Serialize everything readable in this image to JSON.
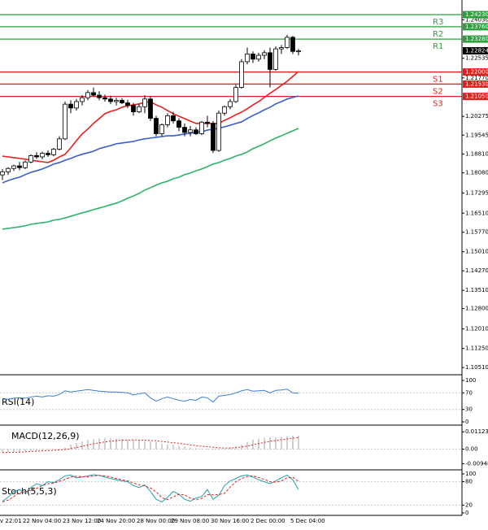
{
  "chart_data": [
    {
      "type": "candlestick",
      "categories": [
        "v 22:01",
        null,
        null,
        null,
        "22 Nov 04:00",
        null,
        null,
        null,
        null,
        null,
        null,
        "23 Nov 12:00",
        null,
        null,
        null,
        null,
        null,
        "24 Nov 20:00",
        null,
        null,
        null,
        null,
        null,
        null,
        "28 Nov 00:00",
        null,
        null,
        null,
        null,
        null,
        "29 Nov 08:00",
        null,
        null,
        null,
        null,
        null,
        null,
        "30 Nov 16:00",
        null,
        null,
        null,
        null,
        null,
        null,
        "2 Dec 00:00",
        null,
        null,
        null,
        null,
        null,
        null,
        "5 Dec 04:00",
        null
      ],
      "open": [
        1.18,
        1.1812,
        1.1825,
        1.1835,
        1.1828,
        1.185,
        1.1875,
        1.187,
        1.1884,
        1.1878,
        1.19,
        1.194,
        1.2075,
        1.206,
        1.2085,
        1.21,
        1.212,
        1.211,
        1.21,
        1.2095,
        1.2085,
        1.209,
        1.208,
        1.207,
        1.2045,
        1.2065,
        1.2095,
        1.202,
        1.196,
        1.1995,
        1.203,
        1.201,
        1.1985,
        1.1965,
        1.1975,
        1.196,
        1.2005,
        1.2,
        1.1895,
        1.204,
        1.2065,
        1.2085,
        1.214,
        1.224,
        1.227,
        1.225,
        1.2265,
        1.2275,
        1.221,
        1.229,
        1.2295,
        1.2335,
        1.228
      ],
      "high": [
        1.1822,
        1.183,
        1.184,
        1.185,
        1.1856,
        1.188,
        1.1888,
        1.189,
        1.1895,
        1.1905,
        1.195,
        1.2085,
        1.209,
        1.2095,
        1.211,
        1.213,
        1.214,
        1.2125,
        1.2112,
        1.2108,
        1.21,
        1.2098,
        1.2092,
        1.208,
        1.2075,
        1.211,
        1.2105,
        1.203,
        1.2,
        1.204,
        1.2045,
        1.202,
        1.2,
        1.199,
        1.1985,
        1.201,
        1.203,
        1.201,
        1.205,
        1.207,
        1.2095,
        1.215,
        1.225,
        1.2295,
        1.228,
        1.2275,
        1.2285,
        1.2295,
        1.23,
        1.2305,
        1.2345,
        1.234,
        1.229
      ],
      "low": [
        1.178,
        1.18,
        1.1815,
        1.1818,
        1.1822,
        1.1845,
        1.1862,
        1.186,
        1.187,
        1.1872,
        1.1895,
        1.1935,
        1.204,
        1.205,
        1.207,
        1.209,
        1.2105,
        1.209,
        1.2085,
        1.2075,
        1.207,
        1.2075,
        1.206,
        1.203,
        1.204,
        1.204,
        1.201,
        1.195,
        1.195,
        1.1985,
        1.2,
        1.197,
        1.195,
        1.195,
        1.1955,
        1.1955,
        1.1985,
        1.1885,
        1.189,
        1.203,
        1.2055,
        1.208,
        1.2135,
        1.223,
        1.2235,
        1.224,
        1.225,
        1.214,
        1.2205,
        1.227,
        1.229,
        1.227,
        1.2265
      ],
      "close": [
        1.1812,
        1.1825,
        1.1835,
        1.1828,
        1.185,
        1.1875,
        1.187,
        1.1884,
        1.1878,
        1.19,
        1.194,
        1.2075,
        1.206,
        1.2085,
        1.21,
        1.212,
        1.211,
        1.21,
        1.2095,
        1.2085,
        1.209,
        1.208,
        1.207,
        1.2045,
        1.2065,
        1.2095,
        1.202,
        1.196,
        1.1995,
        1.203,
        1.201,
        1.1985,
        1.1965,
        1.1975,
        1.196,
        1.2005,
        1.2,
        1.1895,
        1.204,
        1.2065,
        1.2085,
        1.214,
        1.224,
        1.227,
        1.225,
        1.2265,
        1.2275,
        1.221,
        1.229,
        1.2295,
        1.2335,
        1.228,
        1.2282
      ],
      "moving_averages": [
        {
          "color": "#e8201c",
          "values": [
            1.1873,
            1.187,
            1.1867,
            1.1864,
            1.1861,
            1.1857,
            1.1854,
            1.1851,
            1.1848,
            1.1857,
            1.187,
            1.188,
            1.1905,
            1.1933,
            1.1959,
            1.1978,
            1.2,
            1.2019,
            1.2038,
            1.2047,
            1.2053,
            1.2063,
            1.2069,
            1.2072,
            1.2076,
            1.2082,
            1.2085,
            1.2072,
            1.2063,
            1.205,
            1.2038,
            1.2028,
            1.2019,
            1.2009,
            1.2,
            1.2,
            1.2,
            1.2,
            1.2,
            1.2012,
            1.2022,
            1.2034,
            1.2044,
            1.2057,
            1.2072,
            1.2085,
            1.2101,
            1.2117,
            1.2132,
            1.2148,
            1.2164,
            1.2183,
            1.2202
          ]
        },
        {
          "color": "#3a5fcd",
          "values": [
            1.1769,
            1.1778,
            1.1785,
            1.1791,
            1.1801,
            1.181,
            1.1816,
            1.1823,
            1.1832,
            1.1842,
            1.1848,
            1.1857,
            1.1864,
            1.1873,
            1.188,
            1.1886,
            1.1892,
            1.1902,
            1.1908,
            1.1914,
            1.1921,
            1.1924,
            1.1927,
            1.193,
            1.1936,
            1.194,
            1.1943,
            1.1946,
            1.1949,
            1.1952,
            1.1952,
            1.1955,
            1.1959,
            1.1962,
            1.1965,
            1.1968,
            1.1974,
            1.1978,
            1.1981,
            1.1987,
            1.1993,
            1.2,
            1.2006,
            1.2019,
            1.2031,
            1.2041,
            1.2053,
            1.2063,
            1.2076,
            1.2085,
            1.2095,
            1.2101,
            1.2107
          ]
        },
        {
          "color": "#2fb36a",
          "values": [
            1.1589,
            1.1592,
            1.1595,
            1.1598,
            1.1602,
            1.1608,
            1.1611,
            1.1614,
            1.1617,
            1.1624,
            1.1627,
            1.1633,
            1.1639,
            1.1646,
            1.1652,
            1.1658,
            1.1665,
            1.1671,
            1.1677,
            1.1684,
            1.169,
            1.1699,
            1.1709,
            1.1718,
            1.1728,
            1.1741,
            1.175,
            1.176,
            1.1769,
            1.1775,
            1.1785,
            1.1791,
            1.1801,
            1.1807,
            1.1816,
            1.1823,
            1.1832,
            1.1842,
            1.1848,
            1.1857,
            1.1864,
            1.1873,
            1.188,
            1.1889,
            1.1902,
            1.1911,
            1.1921,
            1.1933,
            1.1943,
            1.1952,
            1.1962,
            1.1971,
            1.1981
          ]
        }
      ],
      "ylim": [
        1.1026,
        1.248
      ],
      "yticks": [
        {
          "value": 1.2403,
          "label": "1.24030"
        },
        1.22535,
        {
          "value": 1.2177,
          "label": "1.21770"
        },
        1.20275,
        1.19545,
        {
          "value": 1.1881,
          "label": "1.18810"
        },
        {
          "value": 1.1808,
          "label": "1.18080"
        },
        1.17295,
        {
          "value": 1.1651,
          "label": "1.16510"
        },
        {
          "value": 1.1577,
          "label": "1.15770"
        },
        {
          "value": 1.1501,
          "label": "1.15010"
        },
        {
          "value": 1.1427,
          "label": "1.14270"
        },
        {
          "value": 1.1351,
          "label": "1.13510"
        },
        {
          "value": 1.128,
          "label": "1.12800"
        },
        {
          "value": 1.1201,
          "label": "1.12010"
        },
        {
          "value": 1.1125,
          "label": "1.11250"
        },
        {
          "value": 1.1051,
          "label": "1.10510"
        }
      ],
      "levels": [
        {
          "name": "R3",
          "value": 1.2423,
          "label": "1.24230",
          "color": "#2e9e3e"
        },
        {
          "name": "R2",
          "value": 1.2376,
          "label": "1.23760",
          "color": "#2e9e3e"
        },
        {
          "name": "R1",
          "value": 1.2328,
          "label": "1.23280",
          "color": "#2e9e3e"
        },
        {
          "name": "S1",
          "value": 1.22,
          "label": "1.22000",
          "color": "#e0201c"
        },
        {
          "name": "S2",
          "value": 1.2153,
          "label": "1.21530",
          "color": "#e0201c"
        },
        {
          "name": "S3",
          "value": 1.2105,
          "label": "1.21050",
          "color": "#e0201c"
        }
      ],
      "last_price": 1.22824
    },
    {
      "type": "line",
      "title": "RSI(14)",
      "color": "#3c7fd0",
      "values": [
        55,
        55,
        57,
        58,
        57,
        60,
        62,
        60,
        63,
        62,
        66,
        75,
        72,
        74,
        76,
        78,
        76,
        74,
        73,
        72,
        72,
        71,
        70,
        65,
        68,
        70,
        58,
        50,
        56,
        60,
        56,
        52,
        50,
        54,
        52,
        60,
        58,
        48,
        62,
        64,
        66,
        70,
        75,
        78,
        74,
        75,
        76,
        70,
        76,
        77,
        79,
        70,
        69
      ],
      "ylim": [
        0,
        100
      ],
      "yticks": [
        100,
        70,
        30,
        0
      ]
    },
    {
      "type": "macd",
      "title": "MACD(12,26,9)",
      "color": "#a0a0a0",
      "signal_color": "#e0201c",
      "histogram": [
        -0.002,
        -0.002,
        -0.0018,
        -0.0016,
        -0.0014,
        -0.0012,
        -0.001,
        -0.0008,
        -0.0006,
        -0.0004,
        -0.0002,
        0.001,
        0.003,
        0.004,
        0.005,
        0.006,
        0.0065,
        0.007,
        0.007,
        0.007,
        0.0068,
        0.0066,
        0.0063,
        0.006,
        0.0055,
        0.0052,
        0.005,
        0.0045,
        0.0035,
        0.003,
        0.0028,
        0.0022,
        0.0016,
        0.001,
        0.0006,
        0.0004,
        0.0004,
        0.0003,
        -0.0004,
        0.0004,
        0.001,
        0.0018,
        0.003,
        0.0048,
        0.006,
        0.0068,
        0.0074,
        0.0078,
        0.0076,
        0.008,
        0.0083,
        0.0088,
        0.0088
      ],
      "signal": [
        -0.0022,
        -0.0021,
        -0.002,
        -0.0019,
        -0.0017,
        -0.0015,
        -0.0013,
        -0.0011,
        -0.0009,
        -0.0007,
        -0.0005,
        -0.0002,
        0.0004,
        0.0011,
        0.0019,
        0.0027,
        0.0034,
        0.0041,
        0.0047,
        0.0052,
        0.0055,
        0.0058,
        0.0059,
        0.006,
        0.0059,
        0.0058,
        0.0056,
        0.0054,
        0.005,
        0.0046,
        0.0042,
        0.0038,
        0.0033,
        0.0028,
        0.0023,
        0.0019,
        0.0016,
        0.0013,
        0.0009,
        0.0008,
        0.0008,
        0.001,
        0.0014,
        0.002,
        0.0028,
        0.0036,
        0.0044,
        0.0051,
        0.0056,
        0.0061,
        0.0066,
        0.0071,
        0.0075
      ],
      "ylim": [
        -0.0128,
        0.015
      ],
      "yticks": [
        {
          "value": 0.01123,
          "label": "0.01123"
        },
        {
          "value": 0,
          "label": "0.00"
        },
        -0.00948
      ]
    },
    {
      "type": "stoch",
      "title": "Stoch(5,5,3)",
      "series": [
        {
          "color": "#20a0a8",
          "dash": false,
          "values": [
            30,
            40,
            55,
            60,
            50,
            65,
            75,
            70,
            80,
            78,
            85,
            95,
            97,
            90,
            92,
            95,
            98,
            96,
            92,
            88,
            85,
            82,
            80,
            70,
            65,
            72,
            55,
            35,
            28,
            40,
            55,
            48,
            35,
            30,
            38,
            42,
            60,
            35,
            45,
            70,
            82,
            88,
            95,
            97,
            92,
            85,
            80,
            75,
            82,
            90,
            97,
            85,
            60
          ]
        },
        {
          "color": "#e0201c",
          "dash": true,
          "values": [
            28,
            33,
            42,
            52,
            55,
            58,
            63,
            70,
            75,
            76,
            81,
            86,
            92,
            94,
            93,
            92,
            95,
            96,
            95,
            92,
            88,
            85,
            82,
            77,
            72,
            69,
            64,
            54,
            39,
            34,
            41,
            48,
            46,
            38,
            34,
            37,
            47,
            46,
            47,
            50,
            66,
            80,
            88,
            93,
            95,
            91,
            86,
            80,
            79,
            82,
            90,
            91,
            81
          ]
        }
      ],
      "ylim": [
        0,
        100
      ],
      "yticks": [
        100,
        80,
        20,
        0
      ]
    }
  ]
}
